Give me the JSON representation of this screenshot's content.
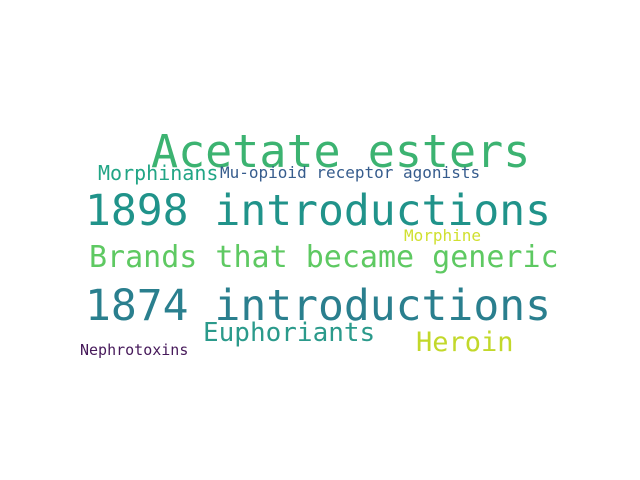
{
  "words": [
    {
      "text": "Acetate esters",
      "color": "#3cb371"
    },
    {
      "text": "1898 introductions",
      "color": "#20938a"
    },
    {
      "text": "1874 introductions",
      "color": "#2a7f8e"
    },
    {
      "text": "Brands that became generic",
      "color": "#5ec962"
    },
    {
      "text": "Euphoriants",
      "color": "#2b9a8b"
    },
    {
      "text": "Heroin",
      "color": "#c2d82a"
    },
    {
      "text": "Morphinans",
      "color": "#21a585"
    },
    {
      "text": "Mu-opioid receptor agonists",
      "color": "#365c8d"
    },
    {
      "text": "Morphine",
      "color": "#d0e030"
    },
    {
      "text": "Nephrotoxins",
      "color": "#46195a"
    }
  ]
}
